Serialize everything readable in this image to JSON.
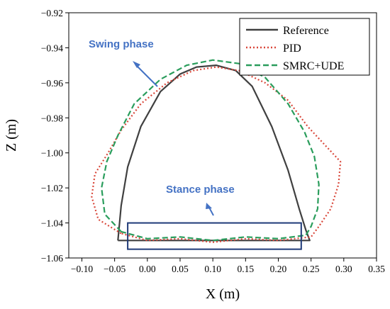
{
  "chart_data": {
    "type": "line",
    "xlabel": "X (m)",
    "ylabel": "Z (m)",
    "xlim": [
      -0.12,
      0.35
    ],
    "ylim": [
      -1.06,
      -0.92
    ],
    "x_ticks": [
      -0.1,
      -0.05,
      0.0,
      0.05,
      0.1,
      0.15,
      0.2,
      0.25,
      0.3,
      0.35
    ],
    "x_tick_labels": [
      "−0.10",
      "−0.05",
      "0.00",
      "0.05",
      "0.10",
      "0.15",
      "0.20",
      "0.25",
      "0.30",
      "0.35"
    ],
    "y_ticks": [
      -0.92,
      -0.94,
      -0.96,
      -0.98,
      -1.0,
      -1.02,
      -1.04,
      -1.06
    ],
    "y_tick_labels": [
      "−0.92",
      "−0.94",
      "−0.96",
      "−0.98",
      "−1.00",
      "−1.02",
      "−1.04",
      "−1.06"
    ],
    "legend_position": "top-right",
    "series": [
      {
        "name": "Reference",
        "color": "#404040",
        "dash": "solid",
        "x": [
          -0.045,
          -0.04,
          -0.03,
          -0.01,
          0.02,
          0.05,
          0.075,
          0.105,
          0.135,
          0.16,
          0.19,
          0.215,
          0.232,
          0.242,
          0.248,
          0.2,
          0.1,
          0.0,
          -0.045
        ],
        "y": [
          -1.05,
          -1.03,
          -1.008,
          -0.985,
          -0.965,
          -0.955,
          -0.951,
          -0.95,
          -0.953,
          -0.962,
          -0.985,
          -1.01,
          -1.032,
          -1.044,
          -1.05,
          -1.05,
          -1.05,
          -1.05,
          -1.05
        ]
      },
      {
        "name": "PID",
        "color": "#d9483b",
        "dash": "dot",
        "x": [
          -0.04,
          -0.075,
          -0.085,
          -0.08,
          -0.06,
          -0.04,
          -0.01,
          0.03,
          0.07,
          0.105,
          0.14,
          0.18,
          0.215,
          0.245,
          0.27,
          0.295,
          0.292,
          0.28,
          0.262,
          0.25,
          0.2,
          0.15,
          0.1,
          0.05,
          0.0,
          -0.04
        ],
        "y": [
          -1.046,
          -1.038,
          -1.025,
          -1.012,
          -1.0,
          -0.987,
          -0.972,
          -0.96,
          -0.953,
          -0.951,
          -0.953,
          -0.96,
          -0.97,
          -0.985,
          -0.995,
          -1.005,
          -1.018,
          -1.032,
          -1.042,
          -1.048,
          -1.05,
          -1.049,
          -1.051,
          -1.049,
          -1.05,
          -1.046
        ]
      },
      {
        "name": "SMRC+UDE",
        "color": "#2a9d5c",
        "dash": "dash",
        "x": [
          -0.04,
          -0.065,
          -0.07,
          -0.062,
          -0.045,
          -0.02,
          0.02,
          0.06,
          0.1,
          0.14,
          0.18,
          0.215,
          0.24,
          0.255,
          0.262,
          0.26,
          0.25,
          0.242,
          0.2,
          0.15,
          0.1,
          0.05,
          0.0,
          -0.04
        ],
        "y": [
          -1.045,
          -1.035,
          -1.02,
          -1.005,
          -0.99,
          -0.972,
          -0.958,
          -0.95,
          -0.947,
          -0.949,
          -0.957,
          -0.972,
          -0.988,
          -1.002,
          -1.018,
          -1.032,
          -1.042,
          -1.047,
          -1.049,
          -1.048,
          -1.05,
          -1.048,
          -1.049,
          -1.045
        ]
      }
    ],
    "annotations": [
      {
        "text": "Swing phase",
        "color": "#4472c4"
      },
      {
        "text": "Stance phase",
        "color": "#4472c4"
      }
    ],
    "stance_box": {
      "x0": -0.03,
      "x1": 0.235,
      "y0": -1.055,
      "y1": -1.04,
      "color": "#1f3a78"
    }
  }
}
